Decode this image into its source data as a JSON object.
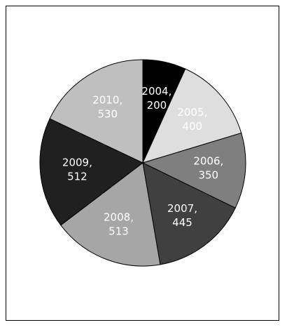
{
  "chart_data": {
    "type": "pie",
    "title": "",
    "start": "top",
    "direction": "clockwise",
    "slices": [
      {
        "label": "2004",
        "value": 200,
        "text": [
          "2004,",
          "200"
        ],
        "color": "#000000",
        "text_color": "#ffffff"
      },
      {
        "label": "2005",
        "value": 400,
        "text": [
          "2005,",
          "400"
        ],
        "color": "#dedede",
        "text_color": "#ffffff"
      },
      {
        "label": "2006",
        "value": 350,
        "text": [
          "2006,",
          "350"
        ],
        "color": "#7f7f7f",
        "text_color": "#ffffff"
      },
      {
        "label": "2007",
        "value": 445,
        "text": [
          "2007,",
          "445"
        ],
        "color": "#404040",
        "text_color": "#ffffff"
      },
      {
        "label": "2008",
        "value": 513,
        "text": [
          "2008,",
          "513"
        ],
        "color": "#a6a6a6",
        "text_color": "#ffffff"
      },
      {
        "label": "2009",
        "value": 512,
        "text": [
          "2009,",
          "512"
        ],
        "color": "#202020",
        "text_color": "#ffffff"
      },
      {
        "label": "2010",
        "value": 530,
        "text": [
          "2010,",
          "530"
        ],
        "color": "#bfbfbf",
        "text_color": "#ffffff"
      }
    ]
  }
}
